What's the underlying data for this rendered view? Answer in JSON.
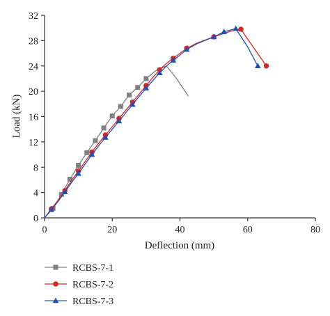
{
  "chart_data": {
    "type": "line",
    "title": "",
    "xlabel": "Deflection (mm)",
    "ylabel": "Load (kN)",
    "xlim": [
      0,
      80
    ],
    "ylim": [
      0,
      32
    ],
    "xticks": [
      "0",
      "20",
      "40",
      "60",
      "80"
    ],
    "yticks": [
      "0",
      "4",
      "8",
      "12",
      "16",
      "20",
      "24",
      "28",
      "32"
    ],
    "grid": false,
    "legend_position": "bottom-left",
    "series": [
      {
        "name": "RCBS-7-1",
        "color": "#808080",
        "marker": "square",
        "x": [
          0,
          2.5,
          5,
          7.5,
          10,
          12.5,
          15,
          17.5,
          20,
          22.5,
          25,
          27.5,
          30,
          33,
          36,
          39,
          42.5
        ],
        "y": [
          0,
          1.5,
          3.7,
          6.1,
          8.3,
          10.3,
          12.2,
          14.2,
          16.1,
          17.6,
          19.4,
          20.6,
          22.0,
          23.3,
          24.0,
          22.0,
          19.2
        ],
        "visible_markers": [
          1,
          2,
          3,
          4,
          5,
          6,
          7,
          8,
          9,
          10,
          11,
          12
        ]
      },
      {
        "name": "RCBS-7-2",
        "color": "#d62728",
        "marker": "circle",
        "x": [
          0,
          2,
          4,
          6,
          8,
          10,
          12,
          14,
          16,
          18,
          20,
          22,
          24,
          26,
          28,
          30,
          32,
          34,
          36,
          38,
          40,
          42,
          45,
          50,
          55,
          58,
          65.5
        ],
        "y": [
          0,
          1.4,
          2.8,
          4.3,
          5.9,
          7.4,
          8.9,
          10.4,
          11.8,
          13.1,
          14.4,
          15.7,
          17.0,
          18.3,
          19.6,
          20.9,
          22.2,
          23.4,
          24.4,
          25.2,
          26.0,
          26.8,
          27.6,
          28.6,
          29.5,
          29.8,
          24.0
        ],
        "visible_markers": [
          1,
          3,
          5,
          7,
          9,
          11,
          13,
          15,
          17,
          19,
          21,
          23,
          25,
          26
        ]
      },
      {
        "name": "RCBS-7-3",
        "color": "#2150b0",
        "marker": "triangle",
        "x": [
          0,
          2,
          4,
          6,
          8,
          10,
          12,
          14,
          16,
          18,
          20,
          22,
          24,
          26,
          28,
          30,
          32,
          34,
          36,
          38,
          40,
          42,
          45,
          50,
          53,
          56.5,
          60,
          63
        ],
        "y": [
          0,
          1.3,
          2.6,
          4.1,
          5.6,
          7.0,
          8.5,
          10.0,
          11.4,
          12.7,
          14.0,
          15.3,
          16.6,
          17.9,
          19.2,
          20.5,
          21.7,
          22.9,
          24.0,
          24.9,
          25.7,
          26.6,
          27.5,
          28.6,
          29.4,
          29.9,
          27.0,
          24.0
        ],
        "visible_markers": [
          1,
          3,
          5,
          7,
          9,
          11,
          13,
          15,
          17,
          19,
          21,
          23,
          24,
          25,
          27
        ]
      }
    ]
  }
}
